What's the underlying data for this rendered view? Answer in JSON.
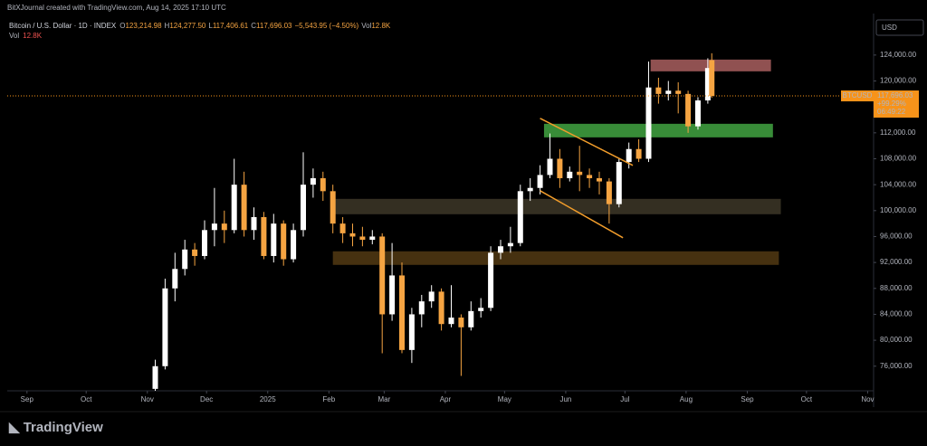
{
  "header": {
    "credit": "BitXJournal created with TradingView.com, Aug 14, 2025 17:10 UTC",
    "symbol": "Bitcoin / U.S. Dollar · 1D · INDEX",
    "ohlc": [
      {
        "key": "O",
        "value": "123,214.98"
      },
      {
        "key": "H",
        "value": "124,277.50"
      },
      {
        "key": "L",
        "value": "117,406.61"
      },
      {
        "key": "C",
        "value": "117,696.03"
      }
    ],
    "change": "−5,543.95 (−4.50%)",
    "vol_key": "Vol",
    "vol_value": "12.8K",
    "vol_row_key": "Vol",
    "vol_row_value": "12.8K"
  },
  "chart_data": {
    "type": "candlestick",
    "currency": "USD",
    "up_color": "#ffffff",
    "down_color": "#f5a442",
    "x": [
      65,
      70,
      75,
      80,
      85,
      90,
      95,
      100,
      105,
      110,
      115,
      120,
      125,
      130,
      135,
      140,
      145,
      150,
      155,
      160,
      165,
      170,
      175,
      180,
      185,
      190,
      195,
      200,
      205,
      210,
      215,
      220,
      225,
      230,
      235,
      240,
      245,
      250,
      255,
      260,
      265,
      270,
      275,
      280,
      285,
      290,
      295,
      300,
      305,
      310,
      315,
      320,
      325,
      330,
      335,
      340,
      345,
      347
    ],
    "open": [
      72500,
      76000,
      88000,
      91000,
      94000,
      93000,
      97000,
      98000,
      97000,
      104000,
      97000,
      99000,
      93000,
      98000,
      92500,
      97000,
      104000,
      105000,
      103000,
      98000,
      96500,
      96000,
      95500,
      96000,
      84000,
      90000,
      78500,
      84000,
      86000,
      87500,
      82500,
      83500,
      82000,
      84500,
      85000,
      93500,
      94500,
      95000,
      103000,
      103500,
      105500,
      108000,
      105000,
      106000,
      105500,
      105000,
      104500,
      101000,
      107500,
      109500,
      108000,
      119000,
      118000,
      118500,
      118000,
      113000,
      117000,
      123214.98
    ],
    "high": [
      77000,
      89500,
      93500,
      95500,
      95000,
      98500,
      103500,
      100000,
      108000,
      106000,
      100500,
      99800,
      99500,
      98500,
      98000,
      109000,
      106500,
      106000,
      104000,
      99000,
      98000,
      97500,
      97000,
      96500,
      95000,
      92000,
      85000,
      87000,
      88500,
      88000,
      88500,
      84000,
      86000,
      86500,
      94500,
      95500,
      97500,
      104000,
      105000,
      107000,
      111900,
      109500,
      106800,
      110000,
      106500,
      106000,
      105000,
      108000,
      110500,
      111000,
      123000,
      120500,
      120000,
      119800,
      118500,
      117500,
      123500,
      124277.5
    ],
    "low": [
      72000,
      75500,
      86000,
      90000,
      91500,
      92500,
      94500,
      95000,
      96500,
      96000,
      95500,
      92500,
      92000,
      91500,
      92000,
      96000,
      102000,
      101500,
      96500,
      95000,
      94500,
      94500,
      94800,
      78000,
      83000,
      78000,
      76500,
      82000,
      85000,
      81500,
      82000,
      74500,
      81500,
      83500,
      84500,
      92500,
      93500,
      94500,
      101500,
      102500,
      105000,
      103500,
      104500,
      103000,
      103500,
      102500,
      98000,
      100500,
      106500,
      107500,
      107500,
      116500,
      117000,
      115000,
      112000,
      112500,
      116500,
      117406.61
    ],
    "close": [
      76000,
      88000,
      91000,
      94000,
      93000,
      97000,
      98000,
      97000,
      104000,
      97000,
      99000,
      93000,
      98000,
      92500,
      97000,
      104000,
      105000,
      103000,
      98000,
      96500,
      96000,
      95500,
      96000,
      84000,
      90000,
      78500,
      84000,
      86000,
      87500,
      82500,
      83500,
      82000,
      84500,
      85000,
      93500,
      94500,
      95000,
      103000,
      103500,
      105500,
      108000,
      105000,
      106000,
      105500,
      105000,
      104500,
      101000,
      107500,
      109500,
      108000,
      119000,
      118000,
      118500,
      118000,
      113000,
      117000,
      122000,
      117696.03
    ],
    "xlim": [
      -10,
      429
    ],
    "ylim": [
      72200,
      130400
    ],
    "xticks": [
      {
        "value": 0,
        "label": "Sep"
      },
      {
        "value": 30,
        "label": "Oct"
      },
      {
        "value": 61,
        "label": "Nov"
      },
      {
        "value": 91,
        "label": "Dec"
      },
      {
        "value": 122,
        "label": "2025"
      },
      {
        "value": 153,
        "label": "Feb"
      },
      {
        "value": 181,
        "label": "Mar"
      },
      {
        "value": 212,
        "label": "Apr"
      },
      {
        "value": 242,
        "label": "May"
      },
      {
        "value": 273,
        "label": "Jun"
      },
      {
        "value": 303,
        "label": "Jul"
      },
      {
        "value": 334,
        "label": "Aug"
      },
      {
        "value": 365,
        "label": "Sep"
      },
      {
        "value": 395,
        "label": "Oct"
      },
      {
        "value": 426,
        "label": "Nov"
      }
    ],
    "yticks": [
      {
        "value": 76000,
        "label": "76,000.00"
      },
      {
        "value": 80000,
        "label": "80,000.00"
      },
      {
        "value": 84000,
        "label": "84,000.00"
      },
      {
        "value": 88000,
        "label": "88,000.00"
      },
      {
        "value": 92000,
        "label": "92,000.00"
      },
      {
        "value": 96000,
        "label": "96,000.00"
      },
      {
        "value": 100000,
        "label": "100,000.00"
      },
      {
        "value": 104000,
        "label": "104,000.00"
      },
      {
        "value": 108000,
        "label": "108,000.00"
      },
      {
        "value": 112000,
        "label": "112,000.00"
      },
      {
        "value": 116000,
        "label": "116,000.00"
      },
      {
        "value": 120000,
        "label": "120,000.00"
      },
      {
        "value": 124000,
        "label": "124,000.00"
      }
    ],
    "zones": [
      {
        "from": 316,
        "to": 377,
        "low": 121488,
        "high": 123302,
        "color": "#a05a5a"
      },
      {
        "from": 262,
        "to": 378,
        "low": 111302,
        "high": 113395,
        "color": "#3e9b3e"
      },
      {
        "from": 155,
        "to": 382,
        "low": 99442,
        "high": 101814,
        "color": "#3a3426"
      },
      {
        "from": 155,
        "to": 381,
        "low": 91628,
        "high": 93721,
        "color": "#4e3612"
      }
    ],
    "trend_lines": [
      {
        "x": [
          260,
          307
        ],
        "y": [
          114232,
          106977
        ],
        "color": "#f29d2b"
      },
      {
        "x": [
          260,
          302
        ],
        "y": [
          103070,
          95814
        ],
        "color": "#f29d2b"
      }
    ],
    "last_price": {
      "symbol": "BTCUSD",
      "label": "117,696.03",
      "change": "+99.29%",
      "countdown": "06:49:22",
      "color": "#f7931a"
    }
  },
  "footer": {
    "brand": "TradingView"
  }
}
